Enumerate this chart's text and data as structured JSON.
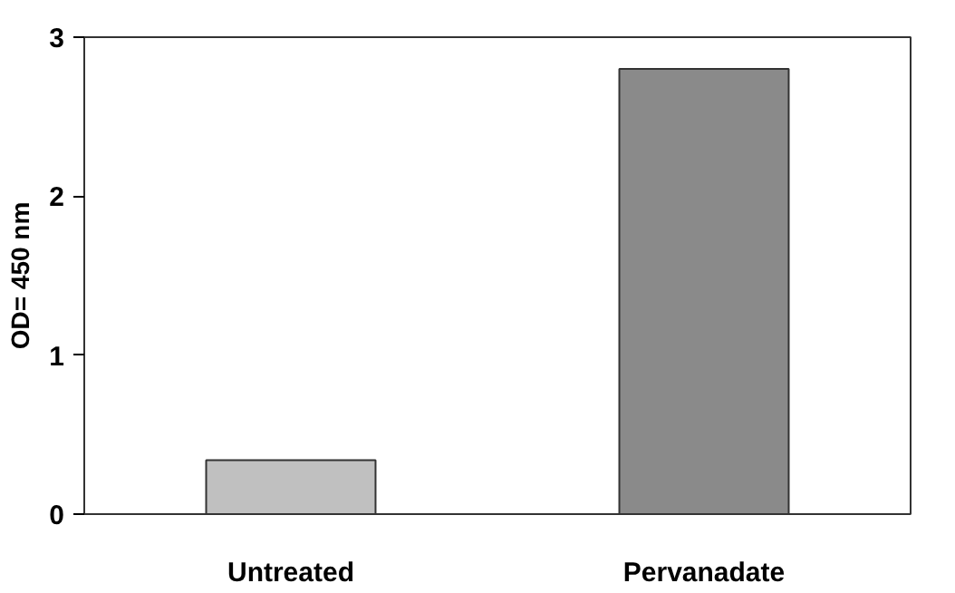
{
  "chart_data": {
    "type": "bar",
    "ylabel": "OD= 450 nm",
    "categories": [
      "Untreated",
      "Pervanadate"
    ],
    "values": [
      0.34,
      2.8
    ],
    "colors": [
      "#c0c0c0",
      "#8a8a8a"
    ],
    "ylim": [
      0,
      3
    ],
    "yticks": [
      0,
      1,
      2,
      3
    ],
    "grid": false
  }
}
